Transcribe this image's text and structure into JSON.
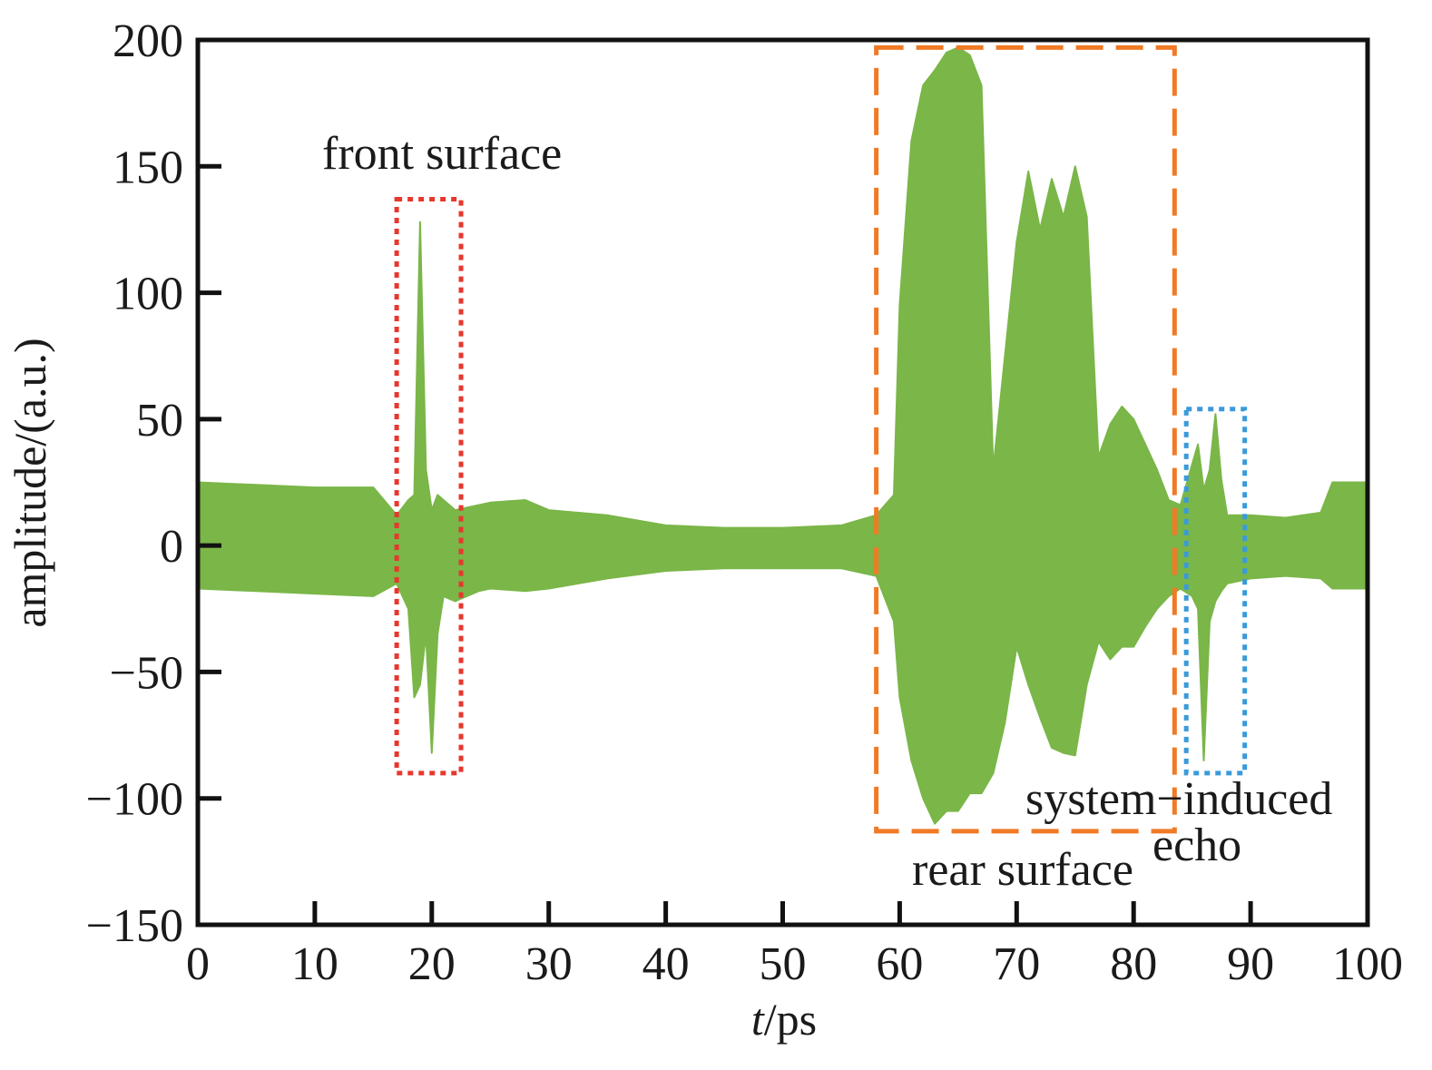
{
  "chart_data": {
    "type": "line",
    "xlabel": {
      "italic": "t",
      "rest": "/ps"
    },
    "ylabel": "amplitude/(a.u.)",
    "xlim": [
      0,
      100
    ],
    "ylim": [
      -150,
      200
    ],
    "xticks": [
      0,
      10,
      20,
      30,
      40,
      50,
      60,
      70,
      80,
      90,
      100
    ],
    "yticks": [
      -150,
      -100,
      -50,
      0,
      50,
      100,
      150,
      200
    ],
    "xtick_labels": [
      "0",
      "10",
      "20",
      "30",
      "40",
      "50",
      "60",
      "70",
      "80",
      "90",
      "100"
    ],
    "ytick_labels": [
      "−150",
      "−100",
      "−50",
      "0",
      "50",
      "100",
      "150",
      "200"
    ],
    "grid": false,
    "series": [
      {
        "color": "#7ab648",
        "envelope_points": [
          [
            0,
            25,
            -17
          ],
          [
            5,
            24,
            -18
          ],
          [
            10,
            23,
            -19
          ],
          [
            15,
            23,
            -20
          ],
          [
            17,
            12,
            -15
          ],
          [
            18,
            18,
            -25
          ],
          [
            18.5,
            20,
            -60
          ],
          [
            19,
            128,
            -55
          ],
          [
            19.5,
            30,
            -35
          ],
          [
            20,
            14,
            -82
          ],
          [
            20.5,
            20,
            -35
          ],
          [
            21,
            18,
            -20
          ],
          [
            22,
            14,
            -22
          ],
          [
            24,
            16,
            -18
          ],
          [
            25,
            17,
            -17
          ],
          [
            28,
            18,
            -18
          ],
          [
            30,
            14,
            -17
          ],
          [
            35,
            12,
            -13
          ],
          [
            40,
            8,
            -10
          ],
          [
            45,
            7,
            -9
          ],
          [
            50,
            7,
            -9
          ],
          [
            55,
            8,
            -9
          ],
          [
            58,
            12,
            -12
          ],
          [
            59.5,
            20,
            -30
          ],
          [
            60,
            95,
            -60
          ],
          [
            61,
            160,
            -85
          ],
          [
            62,
            182,
            -100
          ],
          [
            63,
            188,
            -110
          ],
          [
            64,
            195,
            -105
          ],
          [
            65,
            197,
            -105
          ],
          [
            66,
            194,
            -98
          ],
          [
            67,
            182,
            -98
          ],
          [
            68,
            30,
            -90
          ],
          [
            69,
            75,
            -70
          ],
          [
            70,
            120,
            -40
          ],
          [
            71,
            148,
            -55
          ],
          [
            72,
            125,
            -68
          ],
          [
            73,
            145,
            -80
          ],
          [
            74,
            130,
            -82
          ],
          [
            75,
            150,
            -83
          ],
          [
            76,
            130,
            -55
          ],
          [
            77,
            35,
            -38
          ],
          [
            78,
            48,
            -45
          ],
          [
            79,
            55,
            -40
          ],
          [
            80,
            50,
            -40
          ],
          [
            81,
            40,
            -32
          ],
          [
            82,
            30,
            -25
          ],
          [
            83,
            18,
            -20
          ],
          [
            84,
            16,
            -17
          ],
          [
            85,
            32,
            -20
          ],
          [
            85.5,
            40,
            -25
          ],
          [
            86,
            22,
            -85
          ],
          [
            86.5,
            30,
            -30
          ],
          [
            87,
            52,
            -22
          ],
          [
            87.5,
            26,
            -18
          ],
          [
            88,
            12,
            -15
          ],
          [
            90,
            12,
            -13
          ],
          [
            93,
            11,
            -12
          ],
          [
            96,
            13,
            -13
          ],
          [
            97,
            25,
            -17
          ],
          [
            100,
            25,
            -17
          ]
        ]
      }
    ],
    "annotations": [
      {
        "id": "front",
        "text": "front surface",
        "box_style": "dotted",
        "box_color": "#e8372d",
        "x_range": [
          17,
          22.5
        ],
        "y_range": [
          -90,
          137
        ]
      },
      {
        "id": "rear",
        "text": "rear surface",
        "box_style": "dashed",
        "box_color": "#f07a26",
        "x_range": [
          58,
          83.5
        ],
        "y_range": [
          -113,
          197
        ]
      },
      {
        "id": "echo",
        "text_line1": "system−induced",
        "text_line2": "echo",
        "box_style": "dotted",
        "box_color": "#3a9ad9",
        "x_range": [
          84.5,
          89.5
        ],
        "y_range": [
          -90,
          54
        ]
      }
    ]
  }
}
